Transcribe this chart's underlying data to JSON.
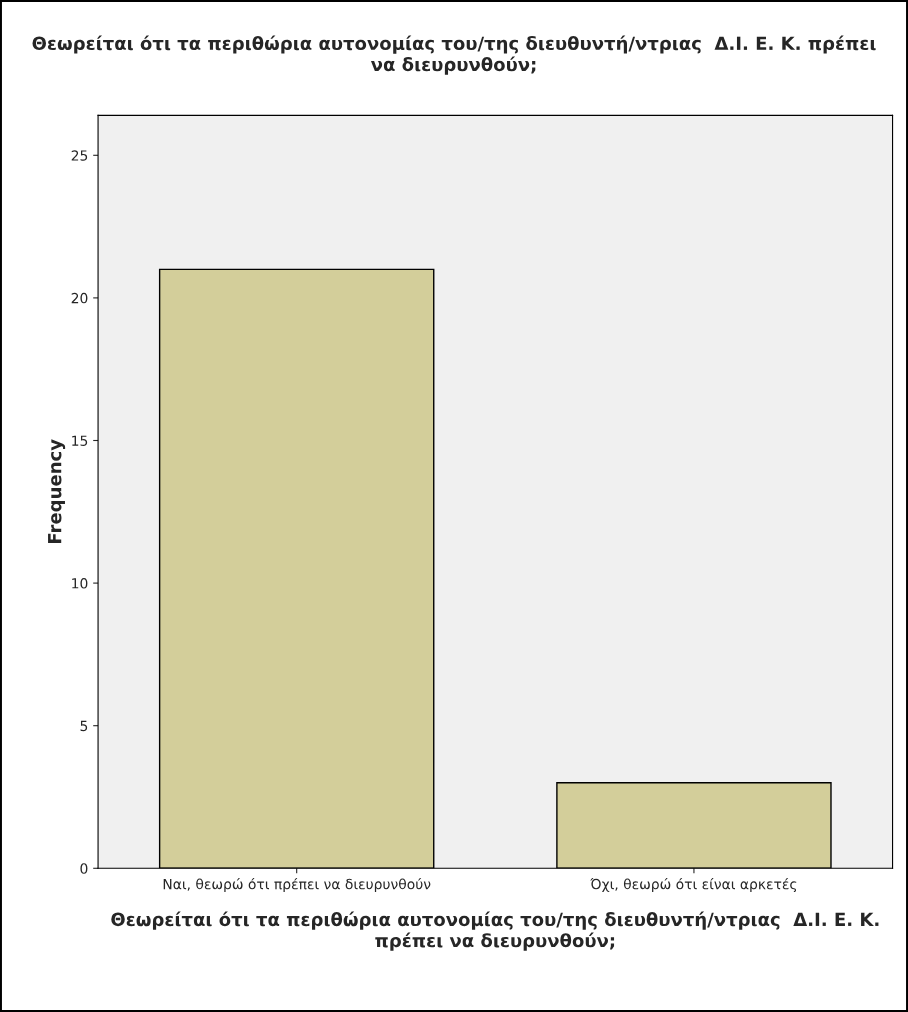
{
  "chart_data": {
    "type": "bar",
    "title": "Θεωρείται ότι τα περιθώρια αυτονομίας του/της διευθυντή/ντριας  Δ.Ι. Ε. Κ. πρέπει\nνα διευρυνθούν;",
    "xlabel": "Θεωρείται ότι τα περιθώρια αυτονομίας του/της διευθυντή/ντριας  Δ.Ι. Ε. Κ.\nπρέπει να διευρυνθούν;",
    "ylabel": "Frequency",
    "categories": [
      "Ναι, θεωρώ ότι πρέπει να διευρυνθούν",
      "Όχι, θεωρώ ότι είναι αρκετές"
    ],
    "values": [
      21,
      3
    ],
    "color": "#d3ce9a",
    "ylim": [
      0,
      26.4
    ],
    "yticks": [
      0,
      5,
      10,
      15,
      20,
      25
    ],
    "grid": false,
    "legend": false
  }
}
